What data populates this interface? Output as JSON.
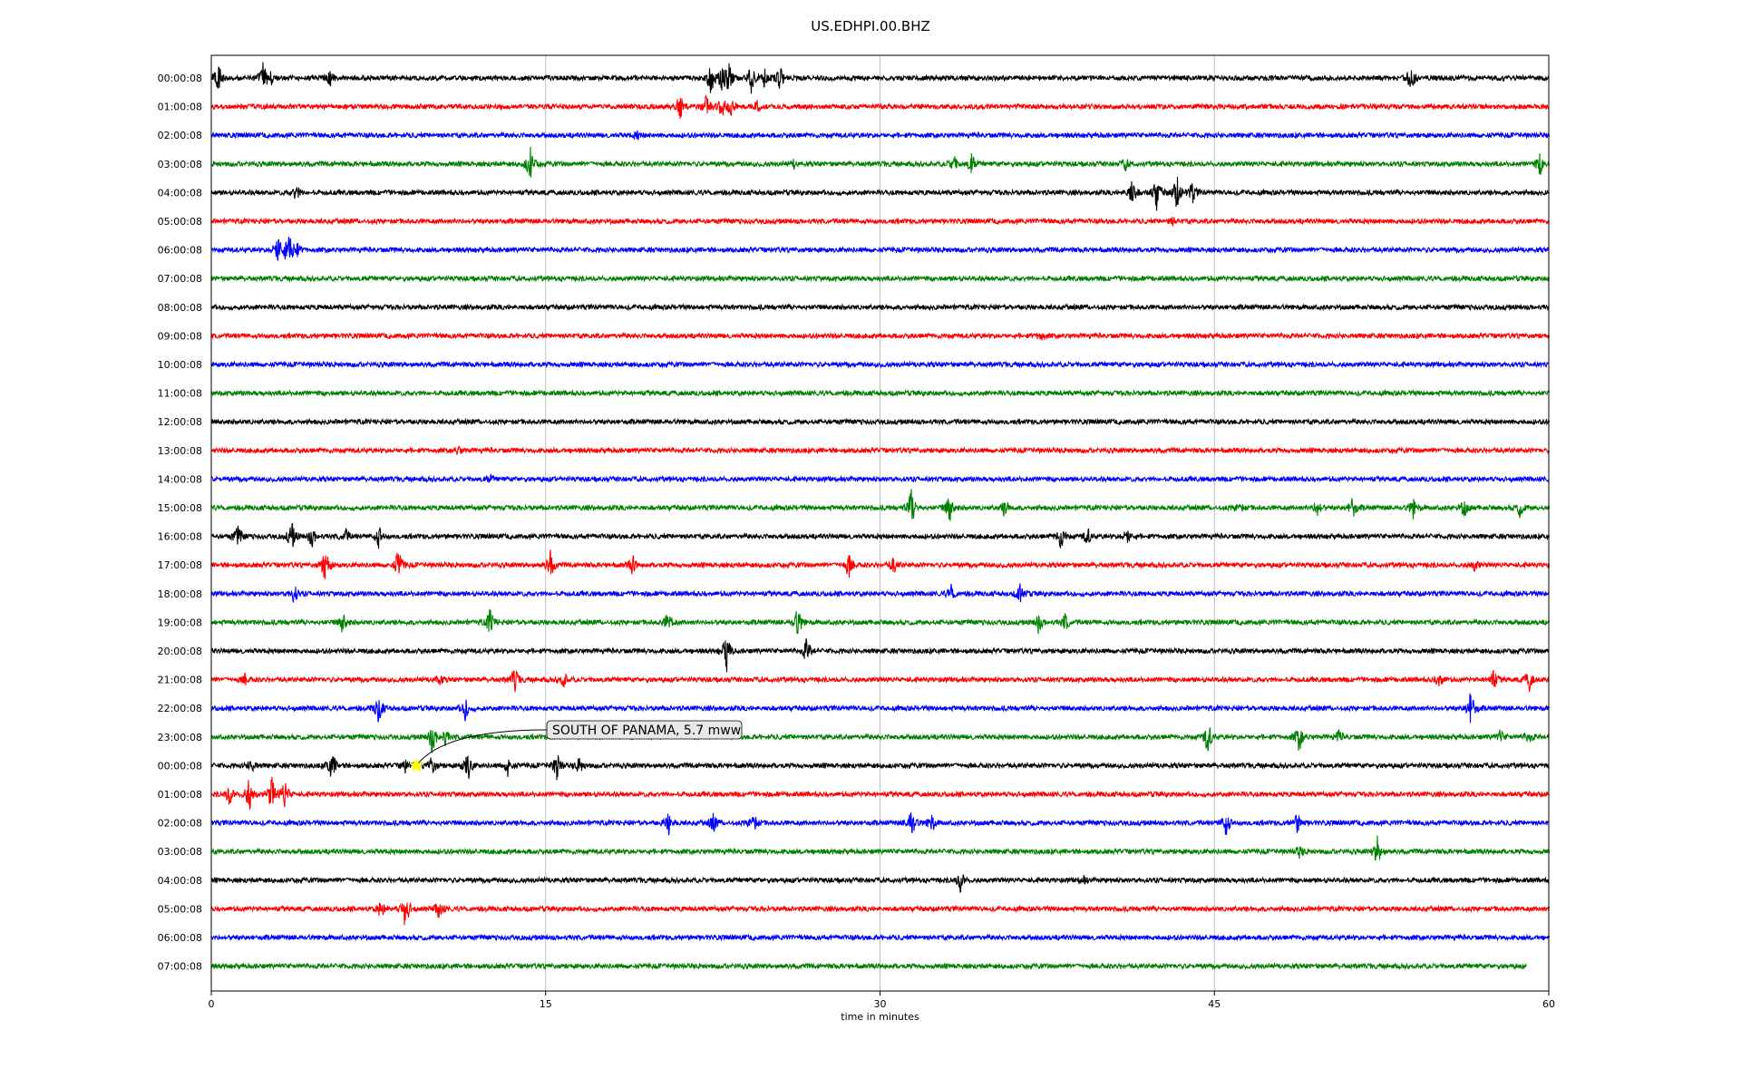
{
  "chart_data": {
    "type": "line",
    "title": "US.EDHPI.00.BHZ",
    "xlabel": "time in minutes",
    "ylabel": "",
    "xlim": [
      0,
      60
    ],
    "x_ticks": [
      0,
      15,
      30,
      45,
      60
    ],
    "x_tick_labels": [
      "0",
      "15",
      "30",
      "45",
      "60"
    ],
    "grid": "vertical lines at 15-minute ticks",
    "trace_colors": [
      "#000000",
      "#ff0000",
      "#0000ff",
      "#008000"
    ],
    "last_trace_end_minute": 59,
    "rows": [
      {
        "label": "00:00:08",
        "color": "#000000",
        "events": [
          [
            0.3,
            1.0
          ],
          [
            2.3,
            0.8
          ],
          [
            2.7,
            0.4
          ],
          [
            5.3,
            0.5
          ],
          [
            22.4,
            1.0
          ],
          [
            22.9,
            0.6
          ],
          [
            23.2,
            0.8
          ],
          [
            24.2,
            0.7
          ],
          [
            24.8,
            0.5
          ],
          [
            25.5,
            0.6
          ],
          [
            53.8,
            0.7
          ]
        ]
      },
      {
        "label": "01:00:08",
        "color": "#ff0000",
        "events": [
          [
            21.0,
            0.8
          ],
          [
            22.2,
            0.6
          ],
          [
            22.9,
            0.5
          ],
          [
            23.3,
            0.4
          ],
          [
            24.5,
            0.3
          ]
        ]
      },
      {
        "label": "02:00:08",
        "color": "#0000ff",
        "events": [
          [
            19.1,
            0.2
          ]
        ]
      },
      {
        "label": "03:00:08",
        "color": "#008000",
        "events": [
          [
            14.3,
            1.0
          ],
          [
            26.1,
            0.2
          ],
          [
            33.3,
            0.5
          ],
          [
            34.1,
            0.5
          ],
          [
            41.0,
            0.3
          ],
          [
            59.6,
            0.6
          ]
        ]
      },
      {
        "label": "04:00:08",
        "color": "#000000",
        "events": [
          [
            3.8,
            0.4
          ],
          [
            41.3,
            0.8
          ],
          [
            42.4,
            0.9
          ],
          [
            43.3,
            0.9
          ],
          [
            44.0,
            0.5
          ]
        ]
      },
      {
        "label": "05:00:08",
        "color": "#ff0000",
        "events": [
          [
            43.1,
            0.2
          ]
        ]
      },
      {
        "label": "06:00:08",
        "color": "#0000ff",
        "events": [
          [
            3.0,
            1.0
          ],
          [
            3.4,
            0.8
          ],
          [
            3.7,
            1.0
          ]
        ]
      },
      {
        "label": "07:00:08",
        "color": "#008000",
        "events": []
      },
      {
        "label": "08:00:08",
        "color": "#000000",
        "events": []
      },
      {
        "label": "09:00:08",
        "color": "#ff0000",
        "events": [
          [
            37.2,
            0.2
          ]
        ]
      },
      {
        "label": "10:00:08",
        "color": "#0000ff",
        "events": []
      },
      {
        "label": "11:00:08",
        "color": "#008000",
        "events": []
      },
      {
        "label": "12:00:08",
        "color": "#000000",
        "events": []
      },
      {
        "label": "13:00:08",
        "color": "#ff0000",
        "events": [
          [
            11.1,
            0.2
          ]
        ]
      },
      {
        "label": "14:00:08",
        "color": "#0000ff",
        "events": [
          [
            12.5,
            0.2
          ]
        ]
      },
      {
        "label": "15:00:08",
        "color": "#008000",
        "events": [
          [
            31.4,
            1.0
          ],
          [
            33.1,
            0.9
          ],
          [
            35.6,
            0.5
          ],
          [
            46.1,
            0.3
          ],
          [
            49.6,
            0.4
          ],
          [
            51.2,
            0.6
          ],
          [
            53.9,
            0.5
          ],
          [
            56.2,
            0.5
          ],
          [
            58.7,
            0.4
          ]
        ]
      },
      {
        "label": "16:00:08",
        "color": "#000000",
        "events": [
          [
            1.2,
            0.6
          ],
          [
            3.6,
            0.8
          ],
          [
            4.5,
            0.5
          ],
          [
            6.0,
            0.4
          ],
          [
            7.5,
            0.6
          ],
          [
            38.1,
            0.7
          ],
          [
            39.3,
            0.5
          ],
          [
            41.1,
            0.4
          ]
        ]
      },
      {
        "label": "17:00:08",
        "color": "#ff0000",
        "events": [
          [
            5.1,
            0.9
          ],
          [
            8.4,
            0.9
          ],
          [
            15.2,
            0.8
          ],
          [
            18.9,
            0.5
          ],
          [
            28.6,
            0.7
          ],
          [
            30.6,
            0.5
          ],
          [
            56.7,
            0.4
          ]
        ]
      },
      {
        "label": "18:00:08",
        "color": "#0000ff",
        "events": [
          [
            3.7,
            0.5
          ],
          [
            33.2,
            0.4
          ],
          [
            36.3,
            0.6
          ]
        ]
      },
      {
        "label": "19:00:08",
        "color": "#008000",
        "events": [
          [
            5.9,
            0.6
          ],
          [
            12.5,
            0.8
          ],
          [
            20.5,
            0.6
          ],
          [
            26.3,
            0.8
          ],
          [
            37.1,
            0.5
          ],
          [
            38.3,
            0.5
          ]
        ]
      },
      {
        "label": "20:00:08",
        "color": "#000000",
        "events": [
          [
            23.1,
            1.0
          ],
          [
            26.7,
            0.7
          ]
        ]
      },
      {
        "label": "21:00:08",
        "color": "#ff0000",
        "events": [
          [
            1.5,
            0.3
          ],
          [
            10.2,
            0.3
          ],
          [
            13.6,
            0.7
          ],
          [
            15.8,
            0.5
          ],
          [
            55.1,
            0.5
          ],
          [
            57.5,
            0.6
          ],
          [
            59.1,
            0.6
          ]
        ]
      },
      {
        "label": "22:00:08",
        "color": "#0000ff",
        "events": [
          [
            7.5,
            0.8
          ],
          [
            11.4,
            0.6
          ],
          [
            56.5,
            1.0
          ]
        ]
      },
      {
        "label": "23:00:08",
        "color": "#008000",
        "events": [
          [
            9.9,
            0.8
          ],
          [
            10.5,
            0.4
          ],
          [
            44.7,
            1.0
          ],
          [
            48.8,
            0.8
          ],
          [
            50.6,
            0.4
          ],
          [
            57.8,
            0.3
          ],
          [
            59.1,
            0.3
          ]
        ]
      },
      {
        "label": "00:00:08",
        "color": "#000000",
        "events": [
          [
            1.8,
            0.4
          ],
          [
            5.4,
            0.9
          ],
          [
            8.7,
            0.4
          ],
          [
            9.9,
            0.5
          ],
          [
            11.5,
            0.9
          ],
          [
            13.3,
            0.5
          ],
          [
            15.5,
            0.8
          ],
          [
            16.5,
            0.4
          ]
        ]
      },
      {
        "label": "01:00:08",
        "color": "#ff0000",
        "events": [
          [
            0.8,
            0.6
          ],
          [
            1.7,
            0.9
          ],
          [
            2.7,
            1.0
          ],
          [
            3.3,
            0.8
          ]
        ]
      },
      {
        "label": "02:00:08",
        "color": "#0000ff",
        "events": [
          [
            20.5,
            0.6
          ],
          [
            22.5,
            0.5
          ],
          [
            24.3,
            0.6
          ],
          [
            31.4,
            1.0
          ],
          [
            32.3,
            0.5
          ],
          [
            45.5,
            0.8
          ],
          [
            48.7,
            0.6
          ]
        ]
      },
      {
        "label": "03:00:08",
        "color": "#008000",
        "events": [
          [
            48.8,
            0.3
          ],
          [
            52.3,
            0.8
          ]
        ]
      },
      {
        "label": "04:00:08",
        "color": "#000000",
        "events": [
          [
            33.6,
            0.6
          ],
          [
            39.1,
            0.2
          ]
        ]
      },
      {
        "label": "05:00:08",
        "color": "#ff0000",
        "events": [
          [
            7.6,
            0.5
          ],
          [
            8.7,
            1.0
          ],
          [
            10.2,
            0.6
          ]
        ]
      },
      {
        "label": "06:00:08",
        "color": "#0000ff",
        "events": []
      },
      {
        "label": "07:00:08",
        "color": "#008000",
        "events": []
      }
    ],
    "annotation": {
      "text": "SOUTH OF PANAMA, 5.7 mww",
      "row_index": 24,
      "minute": 9.2,
      "marker": "star",
      "marker_color": "#ffff00"
    }
  }
}
